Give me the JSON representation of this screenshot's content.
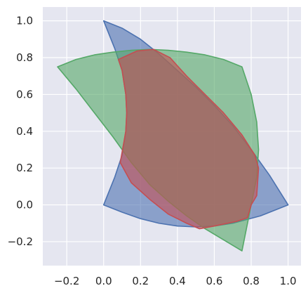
{
  "chart_data": {
    "type": "area",
    "title": "",
    "xlabel": "",
    "ylabel": "",
    "xlim": [
      -0.33,
      1.07
    ],
    "ylim": [
      -0.33,
      1.075
    ],
    "xticks": [
      -0.2,
      0.0,
      0.2,
      0.4,
      0.6,
      0.8,
      1.0
    ],
    "yticks": [
      -0.2,
      0.0,
      0.2,
      0.4,
      0.6,
      0.8,
      1.0
    ],
    "xtick_labels": [
      "−0.2",
      "0.0",
      "0.2",
      "0.4",
      "0.6",
      "0.8",
      "1.0"
    ],
    "ytick_labels": [
      "−0.2",
      "0.0",
      "0.2",
      "0.4",
      "0.6",
      "0.8",
      "1.0"
    ],
    "grid": true,
    "style": {
      "background": "#e5e6f0",
      "grid_color": "#ffffff"
    },
    "series": [
      {
        "color": "#4c72b0",
        "fill_opacity": 0.6,
        "outline": [
          [
            0,
            1
          ],
          [
            0.1,
            0.96
          ],
          [
            0.2,
            0.9
          ],
          [
            0.3,
            0.82
          ],
          [
            0.4,
            0.73
          ],
          [
            0.5,
            0.64
          ],
          [
            0.6,
            0.54
          ],
          [
            0.7,
            0.43
          ],
          [
            0.8,
            0.3
          ],
          [
            0.9,
            0.16
          ],
          [
            1,
            0
          ],
          [
            0.85,
            -0.06
          ],
          [
            0.7,
            -0.1
          ],
          [
            0.6,
            -0.115
          ],
          [
            0.5,
            -0.12
          ],
          [
            0.4,
            -0.115
          ],
          [
            0.3,
            -0.1
          ],
          [
            0.2,
            -0.075
          ],
          [
            0.1,
            -0.04
          ],
          [
            0,
            0
          ],
          [
            0.06,
            0.15
          ],
          [
            0.1,
            0.27
          ],
          [
            0.12,
            0.4
          ],
          [
            0.125,
            0.5
          ],
          [
            0.12,
            0.6
          ],
          [
            0.1,
            0.73
          ],
          [
            0.06,
            0.85
          ],
          [
            0,
            1
          ]
        ]
      },
      {
        "color": "#55a868",
        "fill_opacity": 0.6,
        "outline": [
          [
            -0.25,
            0.75
          ],
          [
            -0.15,
            0.79
          ],
          [
            -0.05,
            0.815
          ],
          [
            0.05,
            0.83
          ],
          [
            0.15,
            0.84
          ],
          [
            0.25,
            0.845
          ],
          [
            0.35,
            0.84
          ],
          [
            0.45,
            0.83
          ],
          [
            0.55,
            0.815
          ],
          [
            0.65,
            0.79
          ],
          [
            0.75,
            0.75
          ],
          [
            0.8,
            0.6
          ],
          [
            0.83,
            0.45
          ],
          [
            0.84,
            0.3
          ],
          [
            0.83,
            0.15
          ],
          [
            0.8,
            0
          ],
          [
            0.75,
            -0.25
          ],
          [
            0.65,
            -0.19
          ],
          [
            0.55,
            -0.13
          ],
          [
            0.45,
            -0.06
          ],
          [
            0.35,
            0.02
          ],
          [
            0.25,
            0.11
          ],
          [
            0.15,
            0.23
          ],
          [
            0.05,
            0.37
          ],
          [
            -0.05,
            0.5
          ],
          [
            -0.15,
            0.63
          ],
          [
            -0.25,
            0.75
          ]
        ]
      },
      {
        "color": "#c44e52",
        "fill_opacity": 0.6,
        "outline": [
          [
            0.09,
            0.23
          ],
          [
            0.12,
            0.4
          ],
          [
            0.125,
            0.5
          ],
          [
            0.12,
            0.6
          ],
          [
            0.1,
            0.73
          ],
          [
            0.08,
            0.79
          ],
          [
            0.18,
            0.836
          ],
          [
            0.27,
            0.845
          ],
          [
            0.36,
            0.8
          ],
          [
            0.45,
            0.7
          ],
          [
            0.55,
            0.6
          ],
          [
            0.65,
            0.5
          ],
          [
            0.75,
            0.38
          ],
          [
            0.82,
            0.27
          ],
          [
            0.84,
            0.2
          ],
          [
            0.83,
            0.05
          ],
          [
            0.8,
            0.0
          ],
          [
            0.78,
            -0.07
          ],
          [
            0.72,
            -0.09
          ],
          [
            0.6,
            -0.115
          ],
          [
            0.52,
            -0.13
          ],
          [
            0.45,
            -0.1
          ],
          [
            0.35,
            -0.05
          ],
          [
            0.25,
            0.03
          ],
          [
            0.15,
            0.12
          ],
          [
            0.09,
            0.23
          ]
        ]
      }
    ]
  }
}
